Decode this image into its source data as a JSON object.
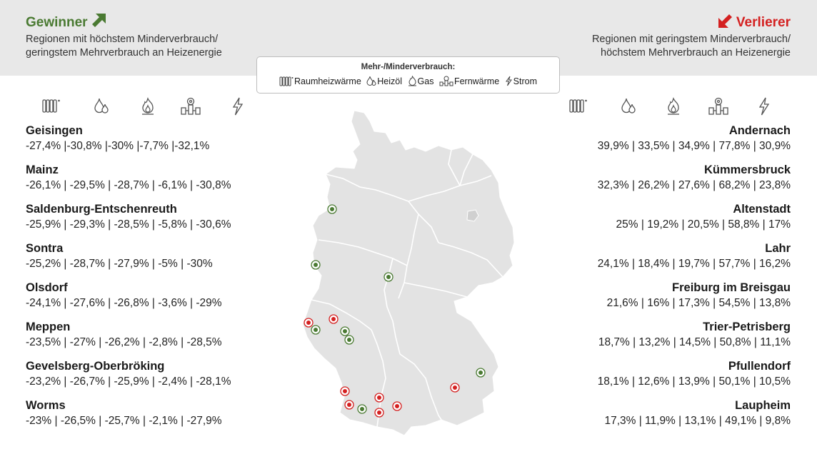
{
  "header": {
    "winners_title": "Gewinner",
    "winners_subtitle_1": "Regionen mit höchstem Minderverbrauch/",
    "winners_subtitle_2": "geringstem Mehrverbrauch an Heizenergie",
    "losers_title": "Verlierer",
    "losers_subtitle_1": "Regionen mit geringstem Minderverbrauch/",
    "losers_subtitle_2": "höchstem Mehrverbrauch an Heizenergie",
    "winner_color": "#4a7a32",
    "loser_color": "#d42020"
  },
  "legend": {
    "title": "Mehr-/Minderverbrauch:",
    "items": [
      {
        "icon": "radiator-icon",
        "label": "Raumheizwärme"
      },
      {
        "icon": "oil-drop-icon",
        "label": "Heizöl"
      },
      {
        "icon": "gas-flame-icon",
        "label": "Gas"
      },
      {
        "icon": "district-heating-icon",
        "label": "Fernwärme"
      },
      {
        "icon": "lightning-icon",
        "label": "Strom"
      }
    ]
  },
  "winners": [
    {
      "name": "Geisingen",
      "values": "-27,4% |-30,8% |-30% |-7,7% |-32,1%"
    },
    {
      "name": "Mainz",
      "values": "-26,1% | -29,5% | -28,7% | -6,1% | -30,8%"
    },
    {
      "name": "Saldenburg-Entschenreuth",
      "values": "-25,9% | -29,3% | -28,5% | -5,8% | -30,6%"
    },
    {
      "name": "Sontra",
      "values": "-25,2% | -28,7% | -27,9% | -5% | -30%"
    },
    {
      "name": "Olsdorf",
      "values": "-24,1% | -27,6% | -26,8% | -3,6% | -29%"
    },
    {
      "name": "Meppen",
      "values": "-23,5% | -27% | -26,2% | -2,8% | -28,5%"
    },
    {
      "name": "Gevelsberg-Oberbröking",
      "values": "-23,2% | -26,7% | -25,9% | -2,4% | -28,1%"
    },
    {
      "name": "Worms",
      "values": "-23% | -26,5% | -25,7% | -2,1% | -27,9%"
    }
  ],
  "losers": [
    {
      "name": "Andernach",
      "values": "39,9% | 33,5% | 34,9% | 77,8% | 30,9%"
    },
    {
      "name": "Kümmersbruck",
      "values": "32,3% | 26,2% | 27,6% | 68,2% | 23,8%"
    },
    {
      "name": "Altenstadt",
      "values": "25% | 19,2% | 20,5% | 58,8% | 17%"
    },
    {
      "name": "Lahr",
      "values": "24,1% | 18,4% | 19,7% | 57,7% | 16,2%"
    },
    {
      "name": "Freiburg im Breisgau",
      "values": "21,6% | 16% | 17,3% | 54,5% | 13,8%"
    },
    {
      "name": "Trier-Petrisberg",
      "values": "18,7% | 13,2% | 14,5% | 50,8% | 11,1%"
    },
    {
      "name": "Pfullendorf",
      "values": "18,1% | 12,6% | 13,9% | 50,1% | 10,5%"
    },
    {
      "name": "Laupheim",
      "values": "17,3% | 11,9% | 13,1% | 49,1% | 9,8%"
    }
  ],
  "map": {
    "name": "germany-map-icon",
    "fill": "#e3e3e3",
    "border": "#ffffff",
    "marker_colors": {
      "winner": "#4a7a32",
      "loser": "#d42020"
    }
  }
}
